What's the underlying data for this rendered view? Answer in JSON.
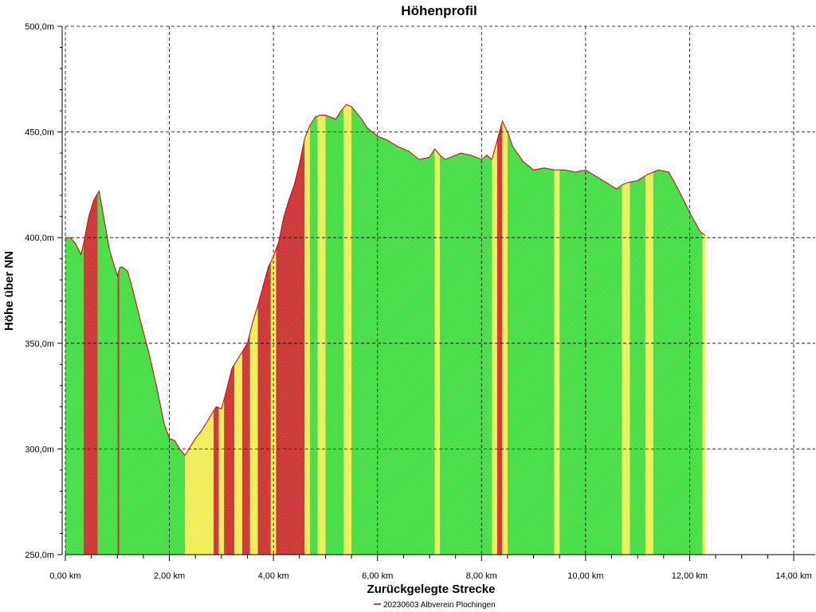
{
  "chart_data": {
    "type": "area",
    "title": "Höhenprofil",
    "xlabel": "Zurückgelegte Strecke",
    "ylabel": "Höhe über NN",
    "xlim": [
      0,
      14
    ],
    "ylim": [
      250,
      500
    ],
    "x_ticks": [
      0,
      2,
      4,
      6,
      8,
      10,
      12,
      14
    ],
    "x_tick_labels": [
      "0,00 km",
      "2,00 km",
      "4,00 km",
      "6,00 km",
      "8,00 km",
      "10,00 km",
      "12,00 km",
      "14,00 km"
    ],
    "y_ticks": [
      250,
      300,
      350,
      400,
      450,
      500
    ],
    "y_tick_labels": [
      "250,0m",
      "300,0m",
      "350,0m",
      "400,0m",
      "450,0m",
      "500,0m"
    ],
    "grid": true,
    "legend_position": "bottom-center",
    "series": [
      {
        "name": "20230603 Albverein Plochingen",
        "color": "#cc0000",
        "x": [
          0,
          0.1,
          0.2,
          0.3,
          0.35,
          0.45,
          0.55,
          0.65,
          0.75,
          0.85,
          0.95,
          1.0,
          1.05,
          1.1,
          1.2,
          1.3,
          1.45,
          1.6,
          1.75,
          1.9,
          2.0,
          2.1,
          2.2,
          2.3,
          2.4,
          2.5,
          2.6,
          2.7,
          2.8,
          2.9,
          3.0,
          3.1,
          3.2,
          3.3,
          3.4,
          3.5,
          3.6,
          3.7,
          3.8,
          3.9,
          4.0,
          4.1,
          4.2,
          4.3,
          4.4,
          4.5,
          4.6,
          4.7,
          4.8,
          4.9,
          5.0,
          5.1,
          5.2,
          5.3,
          5.4,
          5.5,
          5.6,
          5.7,
          5.8,
          6.0,
          6.2,
          6.4,
          6.6,
          6.8,
          7.0,
          7.1,
          7.2,
          7.3,
          7.4,
          7.6,
          7.8,
          8.0,
          8.1,
          8.2,
          8.3,
          8.4,
          8.5,
          8.6,
          8.8,
          9.0,
          9.2,
          9.4,
          9.6,
          9.8,
          10.0,
          10.2,
          10.4,
          10.6,
          10.7,
          10.8,
          11.0,
          11.2,
          11.4,
          11.6,
          11.8,
          12.0,
          12.2,
          12.3
        ],
        "y": [
          400,
          400,
          397,
          392,
          397,
          410,
          418,
          422,
          408,
          394,
          386,
          382,
          386,
          386,
          384,
          375,
          360,
          346,
          330,
          312,
          305,
          304,
          300,
          297,
          301,
          305,
          308,
          312,
          316,
          320,
          319,
          328,
          338,
          342,
          346,
          350,
          360,
          368,
          377,
          386,
          391,
          398,
          410,
          418,
          425,
          435,
          447,
          453,
          457,
          458,
          458,
          457,
          456,
          460,
          463,
          462,
          459,
          456,
          452,
          448,
          446,
          443,
          441,
          437,
          438,
          442,
          439,
          437,
          438,
          440,
          439,
          437,
          439,
          437,
          446,
          455,
          450,
          443,
          436,
          432,
          433,
          432,
          432,
          431,
          432,
          429,
          426,
          423,
          425,
          426,
          427,
          430,
          432,
          431,
          422,
          412,
          403,
          401
        ]
      }
    ],
    "slope_bands": [
      {
        "from": 0.0,
        "to": 0.35,
        "color": "#44dd44"
      },
      {
        "from": 0.35,
        "to": 0.62,
        "color": "#cc3333"
      },
      {
        "from": 0.62,
        "to": 1.0,
        "color": "#44dd44"
      },
      {
        "from": 1.0,
        "to": 1.04,
        "color": "#cc3333"
      },
      {
        "from": 1.04,
        "to": 2.3,
        "color": "#44dd44"
      },
      {
        "from": 2.3,
        "to": 2.85,
        "color": "#eeee55"
      },
      {
        "from": 2.85,
        "to": 2.95,
        "color": "#cc3333"
      },
      {
        "from": 2.95,
        "to": 3.05,
        "color": "#eeee55"
      },
      {
        "from": 3.05,
        "to": 3.25,
        "color": "#cc3333"
      },
      {
        "from": 3.25,
        "to": 3.4,
        "color": "#eeee55"
      },
      {
        "from": 3.4,
        "to": 3.55,
        "color": "#cc3333"
      },
      {
        "from": 3.55,
        "to": 3.7,
        "color": "#eeee55"
      },
      {
        "from": 3.7,
        "to": 3.95,
        "color": "#cc3333"
      },
      {
        "from": 3.95,
        "to": 4.05,
        "color": "#eeee55"
      },
      {
        "from": 4.05,
        "to": 4.6,
        "color": "#cc3333"
      },
      {
        "from": 4.6,
        "to": 4.7,
        "color": "#eeee55"
      },
      {
        "from": 4.7,
        "to": 4.85,
        "color": "#44dd44"
      },
      {
        "from": 4.85,
        "to": 5.0,
        "color": "#eeee55"
      },
      {
        "from": 5.0,
        "to": 5.35,
        "color": "#44dd44"
      },
      {
        "from": 5.35,
        "to": 5.5,
        "color": "#eeee55"
      },
      {
        "from": 5.5,
        "to": 7.1,
        "color": "#44dd44"
      },
      {
        "from": 7.1,
        "to": 7.2,
        "color": "#eeee55"
      },
      {
        "from": 7.2,
        "to": 8.2,
        "color": "#44dd44"
      },
      {
        "from": 8.2,
        "to": 8.3,
        "color": "#eeee55"
      },
      {
        "from": 8.3,
        "to": 8.4,
        "color": "#cc3333"
      },
      {
        "from": 8.4,
        "to": 8.5,
        "color": "#eeee55"
      },
      {
        "from": 8.5,
        "to": 9.4,
        "color": "#44dd44"
      },
      {
        "from": 9.4,
        "to": 9.5,
        "color": "#eeee55"
      },
      {
        "from": 9.5,
        "to": 10.7,
        "color": "#44dd44"
      },
      {
        "from": 10.7,
        "to": 10.85,
        "color": "#eeee55"
      },
      {
        "from": 10.85,
        "to": 11.15,
        "color": "#44dd44"
      },
      {
        "from": 11.15,
        "to": 11.3,
        "color": "#eeee55"
      },
      {
        "from": 11.3,
        "to": 12.25,
        "color": "#44dd44"
      },
      {
        "from": 12.25,
        "to": 12.3,
        "color": "#eeee55"
      }
    ]
  }
}
